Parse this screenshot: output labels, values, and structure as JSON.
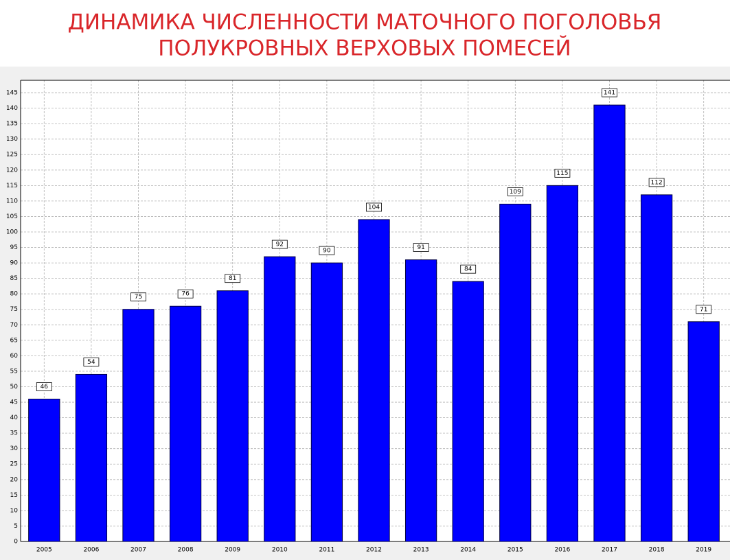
{
  "chart_data": {
    "type": "bar",
    "title": [
      "ДИНАМИКА ЧИСЛЕННОСТИ МАТОЧНОГО ПОГОЛОВЬЯ",
      "ПОЛУКРОВНЫХ ВЕРХОВЫХ ПОМЕСЕЙ"
    ],
    "categories": [
      "2005",
      "2006",
      "2007",
      "2008",
      "2009",
      "2010",
      "2011",
      "2012",
      "2013",
      "2014",
      "2015",
      "2016",
      "2017",
      "2018",
      "2019"
    ],
    "values": [
      46,
      54,
      75,
      76,
      81,
      92,
      90,
      104,
      91,
      84,
      109,
      115,
      141,
      112,
      71
    ],
    "color": "#0000ff",
    "ylim": [
      0,
      149
    ],
    "yticks": [
      0,
      5,
      10,
      15,
      20,
      25,
      30,
      35,
      40,
      45,
      50,
      55,
      60,
      65,
      70,
      75,
      80,
      85,
      90,
      95,
      100,
      105,
      110,
      115,
      120,
      125,
      130,
      135,
      140,
      145
    ],
    "grid": true
  }
}
